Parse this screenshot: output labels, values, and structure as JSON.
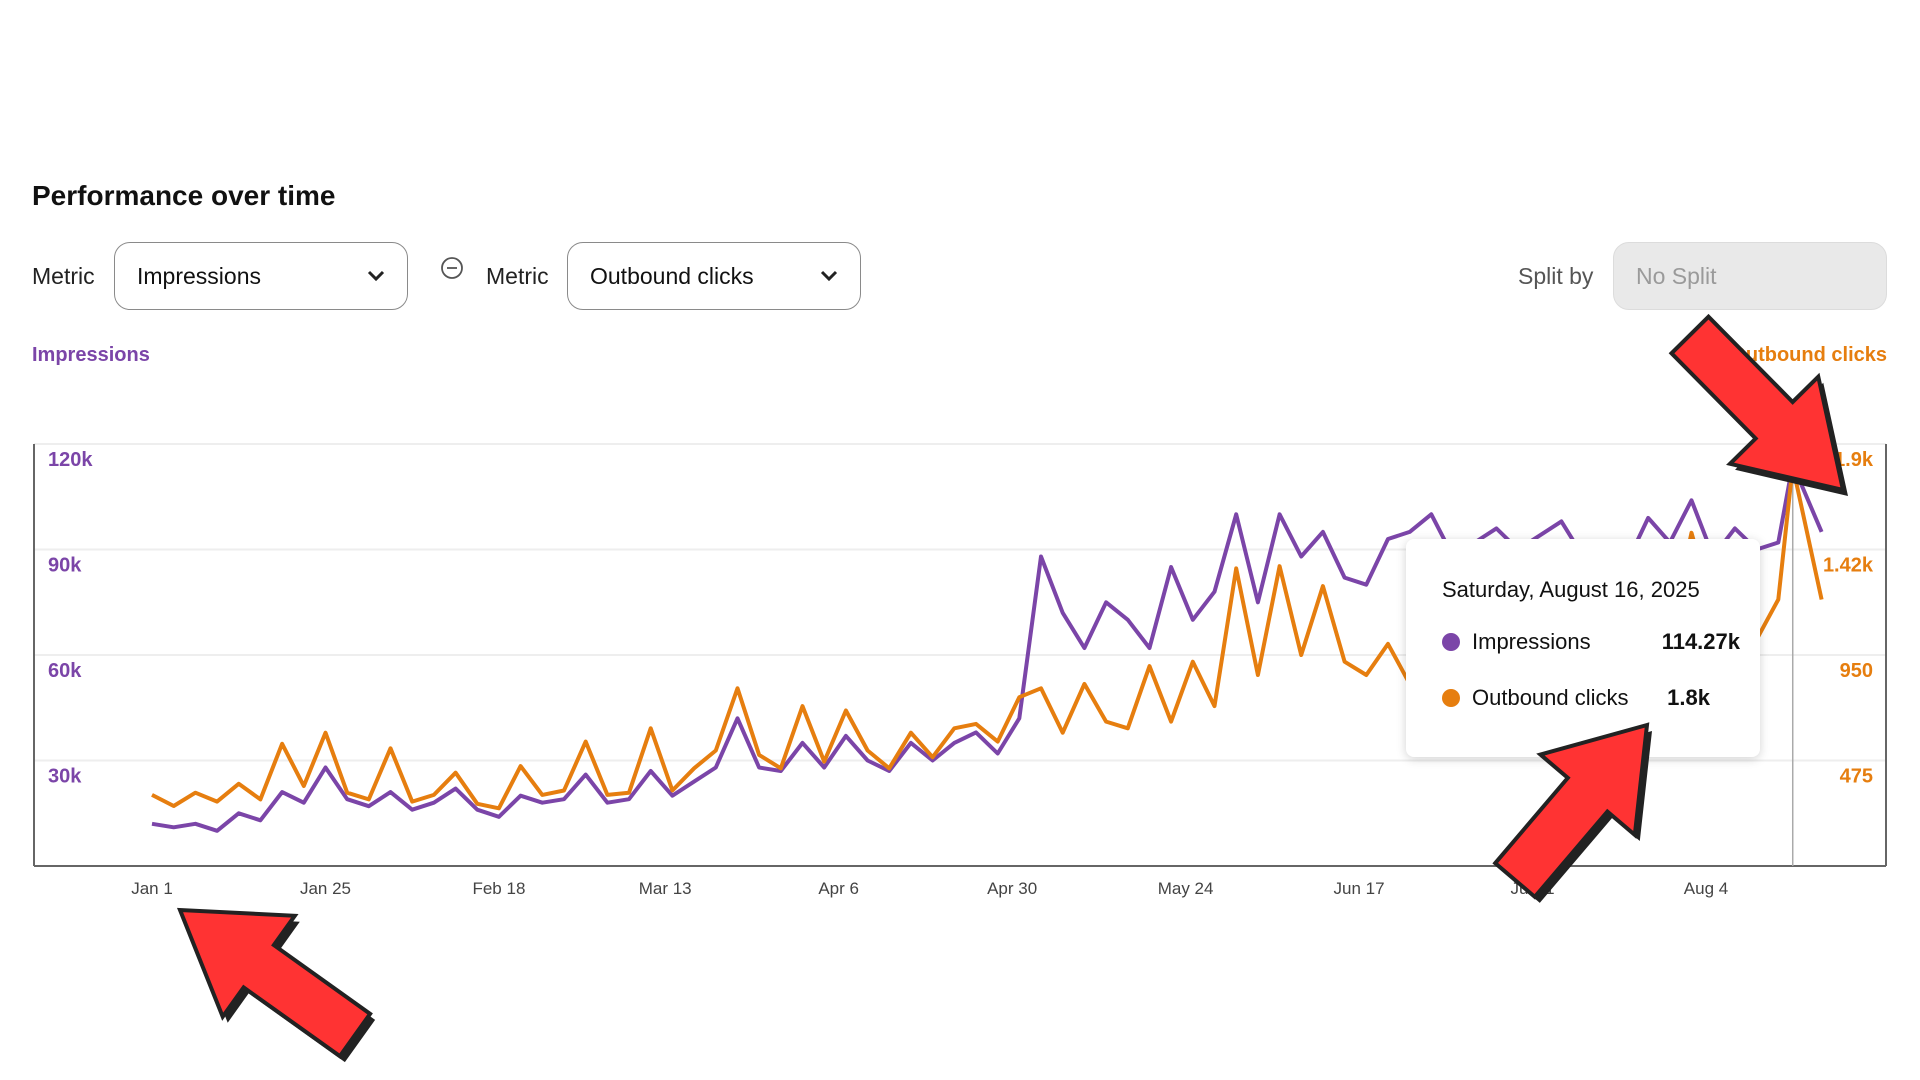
{
  "title": "Performance over time",
  "controls": {
    "metric1_label": "Metric",
    "metric1_value": "Impressions",
    "metric2_label": "Metric",
    "metric2_value": "Outbound clicks",
    "split_label": "Split by",
    "split_value": "No Split"
  },
  "colors": {
    "impressions": "#7b45a8",
    "outbound_clicks": "#e67e0f",
    "annotation_arrow": "#ff3333"
  },
  "tooltip": {
    "date": "Saturday, August 16, 2025",
    "items": [
      {
        "name": "Impressions",
        "value": "114.27k"
      },
      {
        "name": "Outbound clicks",
        "value": "1.8k"
      }
    ]
  },
  "chart_data": {
    "type": "line",
    "left_axis_title": "Impressions",
    "right_axis_title": "Outbound clicks",
    "left_ylim": [
      0,
      120000
    ],
    "right_ylim": [
      0,
      1900
    ],
    "left_ticks": [
      "30k",
      "60k",
      "90k",
      "120k"
    ],
    "right_ticks": [
      "475",
      "950",
      "1.42k",
      "1.9k"
    ],
    "x_ticks": [
      {
        "date": "2025-01-01",
        "label": "Jan 1"
      },
      {
        "date": "2025-01-25",
        "label": "Jan 25"
      },
      {
        "date": "2025-02-18",
        "label": "Feb 18"
      },
      {
        "date": "2025-03-13",
        "label": "Mar 13"
      },
      {
        "date": "2025-04-06",
        "label": "Apr 6"
      },
      {
        "date": "2025-04-30",
        "label": "Apr 30"
      },
      {
        "date": "2025-05-24",
        "label": "May 24"
      },
      {
        "date": "2025-06-17",
        "label": "Jun 17"
      },
      {
        "date": "2025-07-11",
        "label": "Jul 11"
      },
      {
        "date": "2025-08-04",
        "label": "Aug 4"
      }
    ],
    "grid": true,
    "hover_date": "2025-08-16",
    "x": [
      "2025-01-01",
      "2025-01-04",
      "2025-01-07",
      "2025-01-10",
      "2025-01-13",
      "2025-01-16",
      "2025-01-19",
      "2025-01-22",
      "2025-01-25",
      "2025-01-28",
      "2025-01-31",
      "2025-02-03",
      "2025-02-06",
      "2025-02-09",
      "2025-02-12",
      "2025-02-15",
      "2025-02-18",
      "2025-02-21",
      "2025-02-24",
      "2025-02-27",
      "2025-03-02",
      "2025-03-05",
      "2025-03-08",
      "2025-03-11",
      "2025-03-14",
      "2025-03-17",
      "2025-03-20",
      "2025-03-23",
      "2025-03-26",
      "2025-03-29",
      "2025-04-01",
      "2025-04-04",
      "2025-04-07",
      "2025-04-10",
      "2025-04-13",
      "2025-04-16",
      "2025-04-19",
      "2025-04-22",
      "2025-04-25",
      "2025-04-28",
      "2025-05-01",
      "2025-05-04",
      "2025-05-07",
      "2025-05-10",
      "2025-05-13",
      "2025-05-16",
      "2025-05-19",
      "2025-05-22",
      "2025-05-25",
      "2025-05-28",
      "2025-05-31",
      "2025-06-03",
      "2025-06-06",
      "2025-06-09",
      "2025-06-12",
      "2025-06-15",
      "2025-06-18",
      "2025-06-21",
      "2025-06-24",
      "2025-06-27",
      "2025-06-30",
      "2025-07-03",
      "2025-07-06",
      "2025-07-09",
      "2025-07-12",
      "2025-07-15",
      "2025-07-18",
      "2025-07-21",
      "2025-07-24",
      "2025-07-27",
      "2025-07-30",
      "2025-08-02",
      "2025-08-05",
      "2025-08-08",
      "2025-08-11",
      "2025-08-14",
      "2025-08-16",
      "2025-08-20"
    ],
    "series": [
      {
        "name": "Impressions",
        "axis": "left",
        "values": [
          12000,
          11000,
          12000,
          10000,
          15000,
          13000,
          21000,
          18000,
          28000,
          19000,
          17000,
          21000,
          16000,
          18000,
          22000,
          16000,
          14000,
          20000,
          18000,
          19000,
          26000,
          18000,
          19000,
          27000,
          20000,
          24000,
          28000,
          42000,
          28000,
          27000,
          35000,
          28000,
          37000,
          30000,
          27000,
          35000,
          30000,
          35000,
          38000,
          32000,
          42000,
          88000,
          72000,
          62000,
          75000,
          70000,
          62000,
          85000,
          70000,
          78000,
          100000,
          75000,
          100000,
          88000,
          95000,
          82000,
          80000,
          93000,
          95000,
          100000,
          88000,
          92000,
          96000,
          90000,
          94000,
          98000,
          88000,
          92000,
          86000,
          99000,
          92000,
          104000,
          88000,
          96000,
          90000,
          92000,
          114270,
          95000
        ]
      },
      {
        "name": "Outbound clicks",
        "axis": "right",
        "values": [
          320,
          270,
          330,
          290,
          370,
          300,
          550,
          360,
          600,
          330,
          300,
          530,
          290,
          320,
          420,
          280,
          260,
          450,
          320,
          340,
          560,
          320,
          330,
          620,
          340,
          440,
          520,
          800,
          500,
          440,
          720,
          470,
          700,
          520,
          440,
          600,
          490,
          620,
          640,
          560,
          760,
          800,
          600,
          820,
          650,
          620,
          900,
          650,
          920,
          720,
          1340,
          860,
          1350,
          950,
          1260,
          920,
          860,
          1000,
          820,
          940,
          900,
          960,
          1000,
          940,
          980,
          1020,
          940,
          1100,
          980,
          1400,
          1050,
          1500,
          1150,
          1460,
          1020,
          1200,
          1800,
          1200
        ]
      }
    ]
  }
}
